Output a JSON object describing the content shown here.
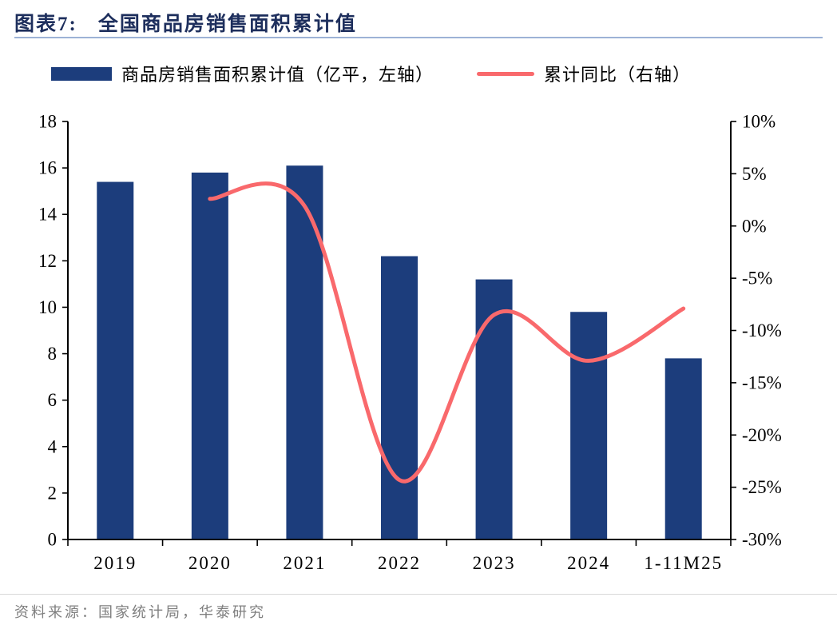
{
  "header": {
    "prefix": "图表7:",
    "title": "全国商品房销售面积累计值"
  },
  "legend": [
    {
      "type": "bar",
      "label": "商品房销售面积累计值（亿平，左轴）",
      "color": "#1c3d7c"
    },
    {
      "type": "line",
      "label": "累计同比（右轴）",
      "color": "#f9696c"
    }
  ],
  "footer": {
    "source": "资料来源：国家统计局，华泰研究"
  },
  "colors": {
    "bar": "#1c3d7c",
    "line": "#f9696c",
    "title": "#1e2f5d",
    "title_rule": "#9db2d6",
    "source_text": "#7f7f7f"
  },
  "chart_data": {
    "type": "bar",
    "subtype": "combo-bar-line",
    "title": "全国商品房销售面积累计值",
    "categories": [
      "2019",
      "2020",
      "2021",
      "2022",
      "2023",
      "2024",
      "1-11M25"
    ],
    "series": [
      {
        "name": "商品房销售面积累计值（亿平，左轴）",
        "type": "bar",
        "axis": "left",
        "color": "#1c3d7c",
        "values": [
          15.4,
          15.8,
          16.1,
          12.2,
          11.2,
          9.8,
          7.8
        ]
      },
      {
        "name": "累计同比（右轴）",
        "type": "line",
        "axis": "right",
        "color": "#f9696c",
        "smooth": true,
        "values": [
          null,
          2.6,
          1.9,
          -24.3,
          -8.5,
          -12.9,
          -7.9
        ]
      }
    ],
    "left_axis": {
      "min": 0,
      "max": 18,
      "step": 2,
      "suffix": ""
    },
    "right_axis": {
      "min": -30,
      "max": 10,
      "step": 5,
      "suffix": "%"
    },
    "grid": false,
    "legend_position": "top"
  }
}
